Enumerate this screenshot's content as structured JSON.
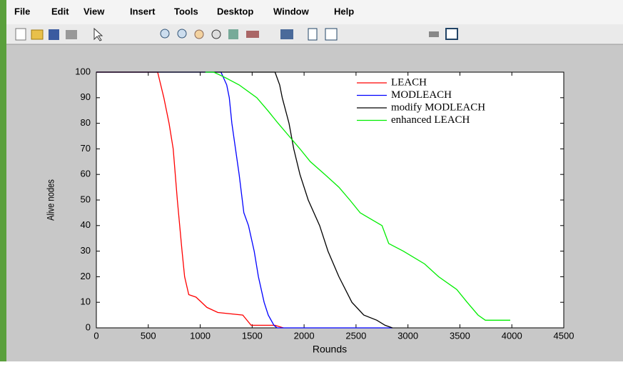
{
  "menu": [
    "File",
    "Edit",
    "View",
    "Insert",
    "Tools",
    "Desktop",
    "Window",
    "Help"
  ],
  "chart_data": {
    "type": "line",
    "xlabel": "Rounds",
    "ylabel": "Alive nodes",
    "xlim": [
      0,
      4500
    ],
    "xticks": [
      0,
      500,
      1000,
      1500,
      2000,
      2500,
      3000,
      3500,
      4000,
      4500
    ],
    "ylim": [
      0,
      100
    ],
    "yticks": [
      0,
      10,
      20,
      30,
      40,
      50,
      60,
      70,
      80,
      90,
      100
    ],
    "legend": "top-right",
    "series": [
      {
        "name": "LEACH",
        "color": "#ff0000",
        "x": [
          0,
          590,
          650,
          700,
          740,
          780,
          825,
          850,
          890,
          960,
          1065,
          1170,
          1410,
          1490,
          1720,
          1800
        ],
        "values": [
          100,
          100,
          90,
          80,
          70,
          50,
          30,
          20,
          13,
          12,
          8,
          6,
          5,
          1,
          1,
          0
        ]
      },
      {
        "name": "MODLEACH",
        "color": "#0000ff",
        "x": [
          0,
          1200,
          1255,
          1280,
          1305,
          1340,
          1375,
          1420,
          1465,
          1520,
          1560,
          1615,
          1655,
          1710,
          1740,
          2850
        ],
        "values": [
          100,
          100,
          95,
          90,
          80,
          70,
          60,
          45,
          40,
          30,
          20,
          10,
          5,
          1,
          0,
          0
        ]
      },
      {
        "name": "modify MODLEACH",
        "color": "#000000",
        "x": [
          0,
          1720,
          1765,
          1790,
          1855,
          1900,
          1960,
          2040,
          2150,
          2230,
          2335,
          2460,
          2575,
          2700,
          2780,
          2850
        ],
        "values": [
          100,
          100,
          95,
          90,
          80,
          70,
          60,
          50,
          40,
          30,
          20,
          10,
          5,
          3,
          1,
          0
        ]
      },
      {
        "name": "enhanced LEACH",
        "color": "#00ee00",
        "x": [
          1050,
          1130,
          1235,
          1375,
          1545,
          1650,
          1750,
          1855,
          1960,
          2060,
          2200,
          2335,
          2440,
          2540,
          2750,
          2815,
          2955,
          3160,
          3295,
          3470,
          3570,
          3675,
          3745,
          3985
        ],
        "values": [
          100,
          100,
          98,
          95,
          90,
          85,
          80,
          75,
          70,
          65,
          60,
          55,
          50,
          45,
          40,
          33,
          30,
          25,
          20,
          15,
          10,
          5,
          3,
          3
        ]
      }
    ]
  }
}
